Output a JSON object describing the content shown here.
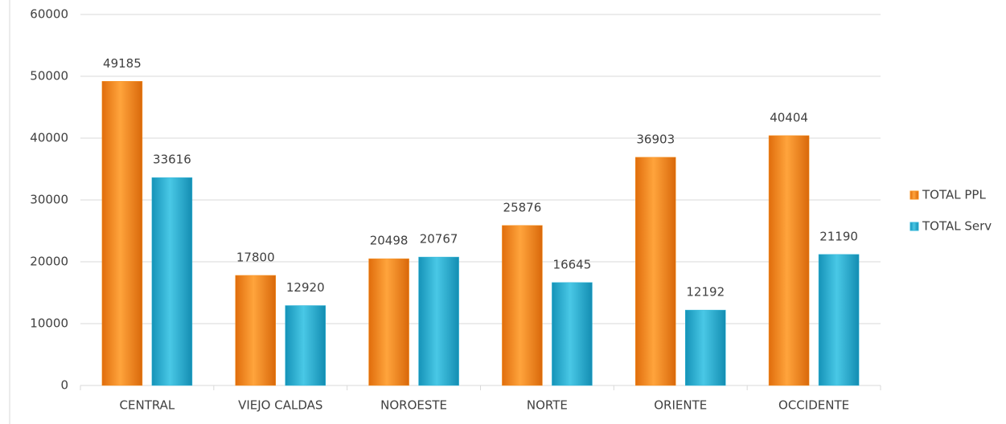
{
  "chart_data": {
    "type": "bar",
    "categories": [
      "CENTRAL",
      "VIEJO CALDAS",
      "NOROESTE",
      "NORTE",
      "ORIENTE",
      "OCCIDENTE"
    ],
    "series": [
      {
        "name": "TOTAL PPL",
        "color": "#f7901e",
        "values": [
          49185,
          17800,
          20498,
          25876,
          36903,
          40404
        ]
      },
      {
        "name": "TOTAL Serv",
        "color": "#2fb5d8",
        "values": [
          33616,
          12920,
          20767,
          16645,
          12192,
          21190
        ]
      }
    ],
    "ylim": [
      0,
      60000
    ],
    "yticks": [
      0,
      10000,
      20000,
      30000,
      40000,
      50000,
      60000
    ],
    "grid": true,
    "legend": "right"
  }
}
